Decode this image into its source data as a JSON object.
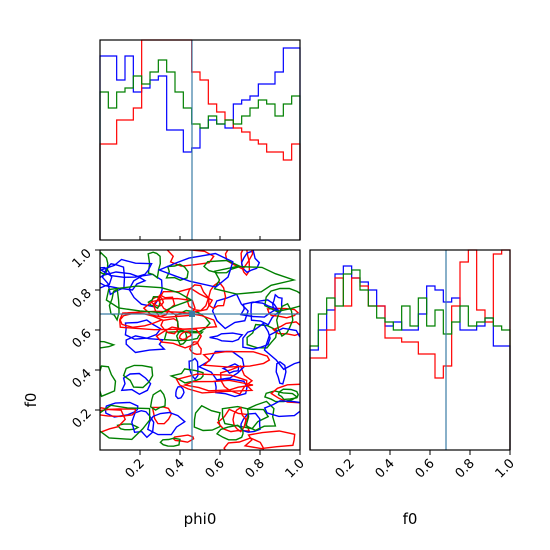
{
  "chart_data": {
    "type": "corner",
    "parameters": [
      "phi0",
      "f0"
    ],
    "xlabel": "phi0",
    "ylabel": "f0",
    "xlabel_right": "f0",
    "xlim": [
      0,
      1
    ],
    "ylim": [
      0,
      1
    ],
    "ticks": [
      "0.2",
      "0.4",
      "0.6",
      "0.8",
      "1.0"
    ],
    "tick_values": [
      0.2,
      0.4,
      0.6,
      0.8,
      1.0
    ],
    "truth": {
      "phi0": 0.46,
      "f0": 0.68,
      "color": "#3a7ca5"
    },
    "series": [
      {
        "color": "#0000ff",
        "phi0_hist": [
          0.92,
          0.92,
          0.8,
          0.92,
          0.74,
          0.76,
          0.8,
          0.82,
          0.55,
          0.55,
          0.44,
          0.46,
          0.56,
          0.6,
          0.58,
          0.56,
          0.68,
          0.7,
          0.72,
          0.78,
          0.78,
          0.84,
          0.96,
          0.96
        ],
        "f0_hist": [
          0.5,
          0.6,
          0.7,
          0.88,
          0.92,
          0.86,
          0.84,
          0.8,
          0.72,
          0.62,
          0.64,
          0.6,
          0.6,
          0.68,
          0.82,
          0.8,
          0.74,
          0.76,
          0.6,
          0.6,
          0.62,
          0.66,
          0.52,
          0.52
        ]
      },
      {
        "color": "#ff0000",
        "phi0_hist": [
          0.48,
          0.48,
          0.6,
          0.6,
          0.66,
          1.0,
          1.0,
          1.0,
          1.0,
          1.0,
          1.0,
          0.84,
          0.8,
          0.68,
          0.64,
          0.6,
          0.56,
          0.54,
          0.5,
          0.48,
          0.44,
          0.44,
          0.4,
          0.48
        ],
        "f0_hist": [
          0.46,
          0.46,
          0.6,
          0.86,
          0.72,
          0.86,
          0.82,
          0.72,
          0.72,
          0.56,
          0.56,
          0.54,
          0.54,
          0.48,
          0.48,
          0.36,
          0.42,
          0.72,
          0.94,
          1.0,
          0.7,
          0.64,
          0.98,
          1.0
        ]
      },
      {
        "color": "#008000",
        "phi0_hist": [
          0.74,
          0.66,
          0.74,
          0.76,
          0.82,
          0.78,
          0.84,
          0.9,
          0.84,
          0.74,
          0.66,
          0.58,
          0.56,
          0.62,
          0.58,
          0.6,
          0.58,
          0.62,
          0.66,
          0.7,
          0.68,
          0.62,
          0.68,
          0.72
        ],
        "f0_hist": [
          0.52,
          0.68,
          0.76,
          0.72,
          0.88,
          0.9,
          0.8,
          0.72,
          0.66,
          0.64,
          0.6,
          0.72,
          0.62,
          0.76,
          0.62,
          0.7,
          0.58,
          0.64,
          0.72,
          0.62,
          0.64,
          0.66,
          0.62,
          0.6
        ]
      }
    ]
  }
}
